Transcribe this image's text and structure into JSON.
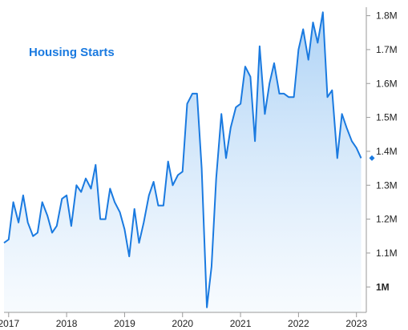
{
  "chart_data": {
    "type": "area",
    "title": "Housing Starts",
    "xlabel": "",
    "ylabel": "",
    "x_ticks": [
      "2017",
      "2018",
      "2019",
      "2020",
      "2021",
      "2022",
      "2023"
    ],
    "y_ticks": [
      "1M",
      "1.1M",
      "1.2M",
      "1.3M",
      "1.4M",
      "1.5M",
      "1.6M",
      "1.7M",
      "1.8M"
    ],
    "bold_y_tick": "1M",
    "xlim": [
      2016.92,
      2023.17
    ],
    "ylim": [
      0.925,
      1.825
    ],
    "grid": false,
    "legend": "none",
    "series": [
      {
        "values": [
          [
            2016.92,
            1.13
          ],
          [
            2017.0,
            1.14
          ],
          [
            2017.08,
            1.25
          ],
          [
            2017.17,
            1.19
          ],
          [
            2017.25,
            1.27
          ],
          [
            2017.33,
            1.19
          ],
          [
            2017.42,
            1.15
          ],
          [
            2017.5,
            1.16
          ],
          [
            2017.58,
            1.25
          ],
          [
            2017.67,
            1.21
          ],
          [
            2017.75,
            1.16
          ],
          [
            2017.83,
            1.18
          ],
          [
            2017.92,
            1.26
          ],
          [
            2018.0,
            1.27
          ],
          [
            2018.08,
            1.18
          ],
          [
            2018.17,
            1.3
          ],
          [
            2018.25,
            1.28
          ],
          [
            2018.33,
            1.32
          ],
          [
            2018.42,
            1.29
          ],
          [
            2018.5,
            1.36
          ],
          [
            2018.58,
            1.2
          ],
          [
            2018.67,
            1.2
          ],
          [
            2018.75,
            1.29
          ],
          [
            2018.83,
            1.25
          ],
          [
            2018.92,
            1.22
          ],
          [
            2019.0,
            1.17
          ],
          [
            2019.08,
            1.09
          ],
          [
            2019.17,
            1.23
          ],
          [
            2019.25,
            1.13
          ],
          [
            2019.33,
            1.19
          ],
          [
            2019.42,
            1.27
          ],
          [
            2019.5,
            1.31
          ],
          [
            2019.58,
            1.24
          ],
          [
            2019.67,
            1.24
          ],
          [
            2019.75,
            1.37
          ],
          [
            2019.83,
            1.3
          ],
          [
            2019.92,
            1.33
          ],
          [
            2020.0,
            1.34
          ],
          [
            2020.08,
            1.54
          ],
          [
            2020.17,
            1.57
          ],
          [
            2020.25,
            1.57
          ],
          [
            2020.33,
            1.35
          ],
          [
            2020.42,
            0.94
          ],
          [
            2020.5,
            1.06
          ],
          [
            2020.58,
            1.32
          ],
          [
            2020.67,
            1.51
          ],
          [
            2020.75,
            1.38
          ],
          [
            2020.83,
            1.47
          ],
          [
            2020.92,
            1.53
          ],
          [
            2021.0,
            1.54
          ],
          [
            2021.08,
            1.65
          ],
          [
            2021.17,
            1.62
          ],
          [
            2021.25,
            1.43
          ],
          [
            2021.33,
            1.71
          ],
          [
            2021.42,
            1.51
          ],
          [
            2021.5,
            1.6
          ],
          [
            2021.58,
            1.66
          ],
          [
            2021.67,
            1.57
          ],
          [
            2021.75,
            1.57
          ],
          [
            2021.83,
            1.56
          ],
          [
            2021.92,
            1.56
          ],
          [
            2022.0,
            1.7
          ],
          [
            2022.08,
            1.76
          ],
          [
            2022.17,
            1.67
          ],
          [
            2022.25,
            1.78
          ],
          [
            2022.33,
            1.72
          ],
          [
            2022.42,
            1.81
          ],
          [
            2022.5,
            1.56
          ],
          [
            2022.58,
            1.58
          ],
          [
            2022.67,
            1.38
          ],
          [
            2022.75,
            1.51
          ],
          [
            2022.83,
            1.47
          ],
          [
            2022.92,
            1.43
          ],
          [
            2023.0,
            1.41
          ],
          [
            2023.08,
            1.38
          ]
        ],
        "color": "#1a7ae0"
      }
    ],
    "end_marker_value": 1.38
  }
}
